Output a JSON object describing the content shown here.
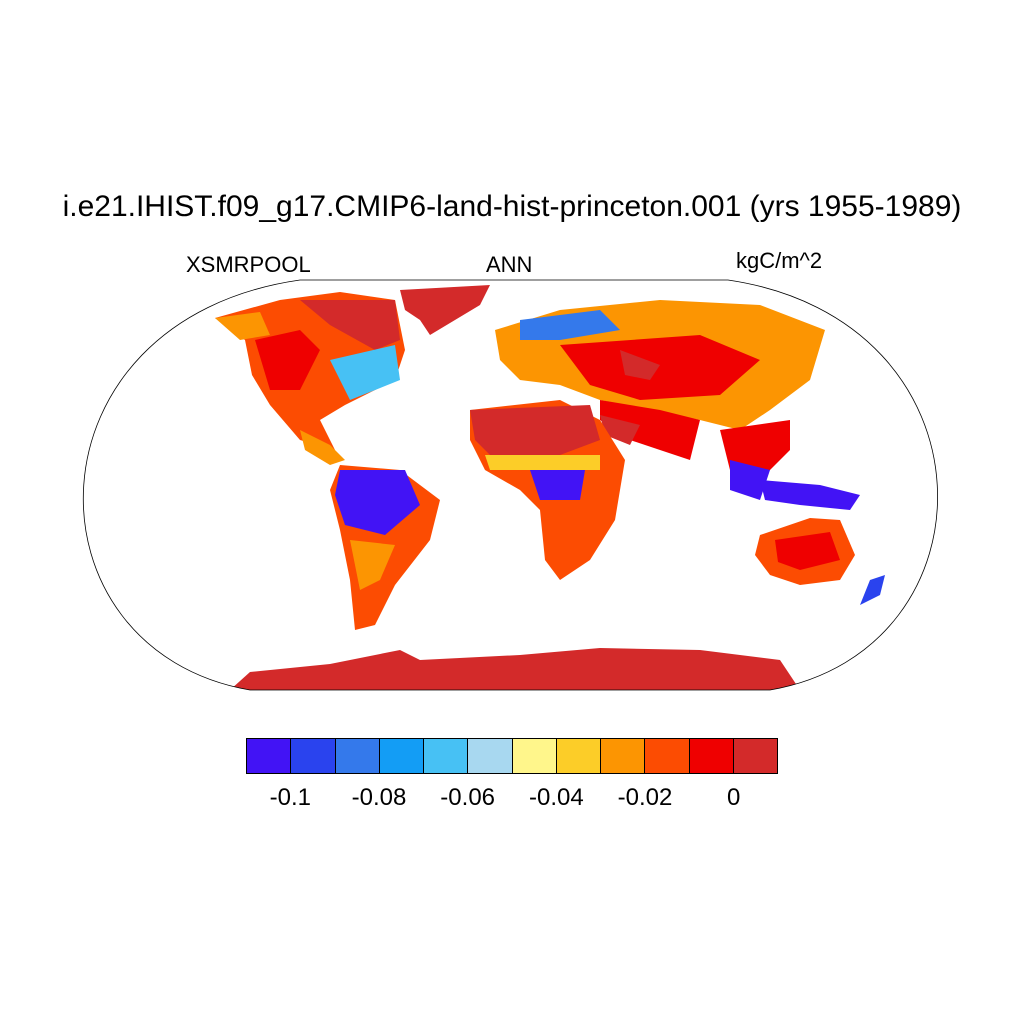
{
  "title": "i.e21.IHIST.f09_g17.CMIP6-land-hist-princeton.001 (yrs 1955-1989)",
  "variable": "XSMRPOOL",
  "season": "ANN",
  "units": "kgC/m^2",
  "colorbar": {
    "colors": [
      "#4213f5",
      "#2a43ee",
      "#3479eb",
      "#139df5",
      "#47c1f4",
      "#a8d8f0",
      "#fff68b",
      "#fccd28",
      "#fc9502",
      "#fc4c02",
      "#ef0000",
      "#d32a2a"
    ],
    "tick_labels": [
      "-0.1",
      "-0.08",
      "-0.06",
      "-0.04",
      "-0.02",
      "0"
    ]
  }
}
